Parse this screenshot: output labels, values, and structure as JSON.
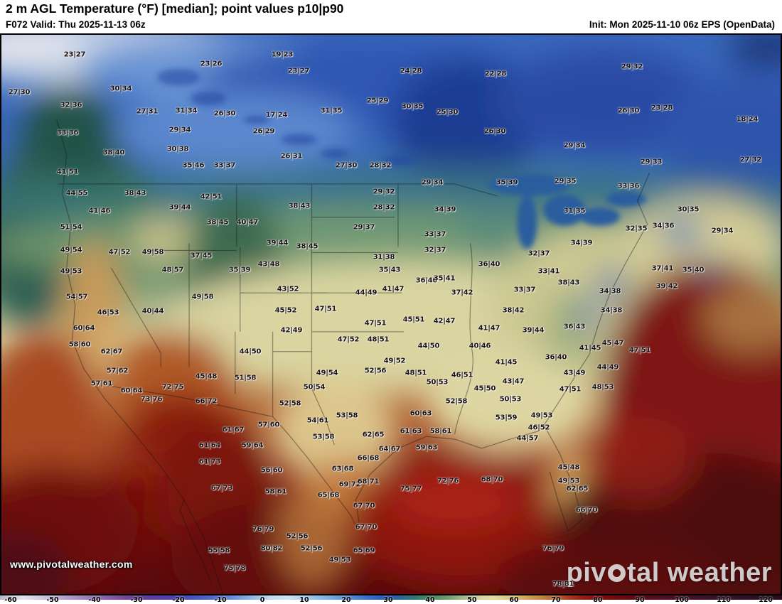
{
  "header": {
    "title": "2 m AGL Temperature (°F) [median]; point values p10|p90",
    "valid": "F072 Valid: Thu 2025-11-13 06z",
    "init": "Init: Mon 2025-11-10 06z EPS (OpenData)"
  },
  "map": {
    "watermark": "www.pivotalweather.com",
    "logo_left": "piv",
    "logo_right": "tal weather"
  },
  "colorbar": {
    "ticks": [
      -60,
      -50,
      -40,
      -30,
      -20,
      -10,
      0,
      10,
      20,
      30,
      40,
      50,
      60,
      70,
      80,
      90,
      100,
      110,
      120
    ],
    "stops": [
      {
        "v": -62.5,
        "c": "#b4b8c6"
      },
      {
        "v": -57,
        "c": "#e2e4ec"
      },
      {
        "v": -50,
        "c": "#c4b4d6"
      },
      {
        "v": -44,
        "c": "#a68cc2"
      },
      {
        "v": -38,
        "c": "#8c64ae"
      },
      {
        "v": -32,
        "c": "#744496"
      },
      {
        "v": -27,
        "c": "#603a9c"
      },
      {
        "v": -22,
        "c": "#5040aa"
      },
      {
        "v": -17,
        "c": "#4a52b6"
      },
      {
        "v": -12,
        "c": "#4f6ac4"
      },
      {
        "v": -7,
        "c": "#6c90d4"
      },
      {
        "v": -2,
        "c": "#96bae4"
      },
      {
        "v": 2,
        "c": "#c2dcf0"
      },
      {
        "v": 6,
        "c": "#cfe3f2"
      },
      {
        "v": 10,
        "c": "#a8cdec"
      },
      {
        "v": 15,
        "c": "#80b2e2"
      },
      {
        "v": 20,
        "c": "#588fd3"
      },
      {
        "v": 25,
        "c": "#3a70c3"
      },
      {
        "v": 29,
        "c": "#2b5cb2"
      },
      {
        "v": 33,
        "c": "#2c6796"
      },
      {
        "v": 36,
        "c": "#2f7872"
      },
      {
        "v": 40,
        "c": "#478860"
      },
      {
        "v": 44,
        "c": "#6f9c6e"
      },
      {
        "v": 48,
        "c": "#a6b88c"
      },
      {
        "v": 52,
        "c": "#d7d3a0"
      },
      {
        "v": 55,
        "c": "#e3d9a3"
      },
      {
        "v": 58,
        "c": "#decb85"
      },
      {
        "v": 62,
        "c": "#d4aa66"
      },
      {
        "v": 66,
        "c": "#c58949"
      },
      {
        "v": 70,
        "c": "#b66130"
      },
      {
        "v": 73,
        "c": "#a73d20"
      },
      {
        "v": 76,
        "c": "#962013"
      },
      {
        "v": 80,
        "c": "#800f0e"
      },
      {
        "v": 85,
        "c": "#6b0a0c"
      },
      {
        "v": 90,
        "c": "#5b0c17"
      },
      {
        "v": 96,
        "c": "#4d1021"
      },
      {
        "v": 104,
        "c": "#3f1227"
      },
      {
        "v": 112,
        "c": "#341127"
      },
      {
        "v": 120,
        "c": "#2b0e21"
      },
      {
        "v": 124,
        "c": "#270c1d"
      }
    ]
  },
  "stations": [
    [
      "23|27",
      105,
      77
    ],
    [
      "19|23",
      397,
      77
    ],
    [
      "23|26",
      297,
      90
    ],
    [
      "23|27",
      420,
      100
    ],
    [
      "24|28",
      578,
      100
    ],
    [
      "22|28",
      697,
      104
    ],
    [
      "29|32",
      889,
      94
    ],
    [
      "27|30",
      27,
      130
    ],
    [
      "30|34",
      170,
      125
    ],
    [
      "32|36",
      100,
      148
    ],
    [
      "27|31",
      207,
      157
    ],
    [
      "31|34",
      262,
      156
    ],
    [
      "26|30",
      316,
      160
    ],
    [
      "17|24",
      389,
      162
    ],
    [
      "31|35",
      466,
      156
    ],
    [
      "25|29",
      531,
      142
    ],
    [
      "30|35",
      580,
      150
    ],
    [
      "25|30",
      629,
      158
    ],
    [
      "26|30",
      884,
      156
    ],
    [
      "23|28",
      931,
      152
    ],
    [
      "18|24",
      1051,
      168
    ],
    [
      "33|36",
      95,
      187
    ],
    [
      "29|34",
      253,
      183
    ],
    [
      "26|29",
      371,
      185
    ],
    [
      "26|30",
      696,
      185
    ],
    [
      "38|40",
      160,
      215
    ],
    [
      "30|38",
      250,
      210
    ],
    [
      "26|31",
      410,
      220
    ],
    [
      "29|34",
      808,
      205
    ],
    [
      "27|32",
      1056,
      225
    ],
    [
      "41|51",
      95,
      242
    ],
    [
      "35|46",
      272,
      233
    ],
    [
      "33|37",
      316,
      233
    ],
    [
      "27|30",
      487,
      233
    ],
    [
      "28|32",
      535,
      233
    ],
    [
      "29|34",
      608,
      257
    ],
    [
      "29|33",
      916,
      228
    ],
    [
      "44|55",
      108,
      272
    ],
    [
      "38|43",
      190,
      272
    ],
    [
      "42|51",
      297,
      277
    ],
    [
      "38|43",
      421,
      290
    ],
    [
      "29|32",
      540,
      270
    ],
    [
      "28|32",
      540,
      292
    ],
    [
      "34|39",
      626,
      295
    ],
    [
      "35|39",
      713,
      257
    ],
    [
      "29|35",
      795,
      255
    ],
    [
      "33|36",
      884,
      262
    ],
    [
      "31|35",
      808,
      297
    ],
    [
      "30|35",
      968,
      295
    ],
    [
      "39|44",
      253,
      292
    ],
    [
      "41|46",
      140,
      297
    ],
    [
      "32|35",
      895,
      322
    ],
    [
      "34|36",
      933,
      318
    ],
    [
      "29|34",
      1016,
      325
    ],
    [
      "51|54",
      100,
      320
    ],
    [
      "38|45",
      306,
      313
    ],
    [
      "40|47",
      348,
      313
    ],
    [
      "29|37",
      512,
      320
    ],
    [
      "33|37",
      612,
      330
    ],
    [
      "49|54",
      100,
      352
    ],
    [
      "47|52",
      168,
      355
    ],
    [
      "49|58",
      215,
      355
    ],
    [
      "37|45",
      283,
      360
    ],
    [
      "39|44",
      390,
      342
    ],
    [
      "38|45",
      432,
      347
    ],
    [
      "31|38",
      540,
      362
    ],
    [
      "32|37",
      612,
      352
    ],
    [
      "32|37",
      758,
      357
    ],
    [
      "34|39",
      818,
      342
    ],
    [
      "36|40",
      688,
      372
    ],
    [
      "35|40",
      975,
      380
    ],
    [
      "37|41",
      932,
      378
    ],
    [
      "48|57",
      243,
      380
    ],
    [
      "35|39",
      337,
      380
    ],
    [
      "43|48",
      378,
      372
    ],
    [
      "35|43",
      548,
      380
    ],
    [
      "36|40",
      600,
      395
    ],
    [
      "35|41",
      625,
      392
    ],
    [
      "33|41",
      772,
      382
    ],
    [
      "38|43",
      800,
      398
    ],
    [
      "39|42",
      938,
      403
    ],
    [
      "34|38",
      858,
      410
    ],
    [
      "49|53",
      100,
      382
    ],
    [
      "54|57",
      108,
      418
    ],
    [
      "49|58",
      285,
      418
    ],
    [
      "43|52",
      405,
      407
    ],
    [
      "41|47",
      553,
      407
    ],
    [
      "44|49",
      515,
      412
    ],
    [
      "37|42",
      650,
      412
    ],
    [
      "33|37",
      738,
      408
    ],
    [
      "46|53",
      152,
      440
    ],
    [
      "40|44",
      215,
      438
    ],
    [
      "45|52",
      402,
      437
    ],
    [
      "47|51",
      458,
      435
    ],
    [
      "45|51",
      582,
      450
    ],
    [
      "42|47",
      625,
      452
    ],
    [
      "47|51",
      528,
      455
    ],
    [
      "38|42",
      722,
      437
    ],
    [
      "34|38",
      860,
      437
    ],
    [
      "36|43",
      808,
      460
    ],
    [
      "41|47",
      688,
      462
    ],
    [
      "42|49",
      410,
      465
    ],
    [
      "39|44",
      750,
      465
    ],
    [
      "60|64",
      118,
      462
    ],
    [
      "58|60",
      112,
      485
    ],
    [
      "62|67",
      157,
      495
    ],
    [
      "47|52",
      490,
      478
    ],
    [
      "48|51",
      532,
      478
    ],
    [
      "44|50",
      603,
      487
    ],
    [
      "40|46",
      675,
      487
    ],
    [
      "44|50",
      352,
      495
    ],
    [
      "47|51",
      900,
      493
    ],
    [
      "45|47",
      862,
      483
    ],
    [
      "41|45",
      830,
      490
    ],
    [
      "57|62",
      165,
      522
    ],
    [
      "45|48",
      290,
      530
    ],
    [
      "51|58",
      345,
      532
    ],
    [
      "49|52",
      555,
      508
    ],
    [
      "41|45",
      712,
      510
    ],
    [
      "36|40",
      782,
      503
    ],
    [
      "49|54",
      460,
      525
    ],
    [
      "52|56",
      528,
      522
    ],
    [
      "48|51",
      585,
      525
    ],
    [
      "46|51",
      650,
      528
    ],
    [
      "43|49",
      808,
      525
    ],
    [
      "44|49",
      855,
      517
    ],
    [
      "43|47",
      722,
      537
    ],
    [
      "50|53",
      615,
      538
    ],
    [
      "45|50",
      682,
      547
    ],
    [
      "57|61",
      143,
      540
    ],
    [
      "60|64",
      185,
      550
    ],
    [
      "72|75",
      243,
      545
    ],
    [
      "73|76",
      213,
      562
    ],
    [
      "50|54",
      442,
      545
    ],
    [
      "52|58",
      408,
      568
    ],
    [
      "66|72",
      290,
      565
    ],
    [
      "52|58",
      642,
      565
    ],
    [
      "50|53",
      718,
      562
    ],
    [
      "47|51",
      802,
      548
    ],
    [
      "48|53",
      848,
      545
    ],
    [
      "57|60",
      378,
      598
    ],
    [
      "61|67",
      328,
      605
    ],
    [
      "53|58",
      488,
      585
    ],
    [
      "54|61",
      447,
      592
    ],
    [
      "49|53",
      762,
      585
    ],
    [
      "53|59",
      712,
      588
    ],
    [
      "60|63",
      592,
      582
    ],
    [
      "46|52",
      758,
      602
    ],
    [
      "61|63",
      578,
      607
    ],
    [
      "58|61",
      620,
      607
    ],
    [
      "53|58",
      455,
      615
    ],
    [
      "62|65",
      525,
      612
    ],
    [
      "59|63",
      600,
      630
    ],
    [
      "64|67",
      548,
      632
    ],
    [
      "61|64",
      295,
      627
    ],
    [
      "59|64",
      355,
      627
    ],
    [
      "44|57",
      742,
      617
    ],
    [
      "61|73",
      295,
      650
    ],
    [
      "56|60",
      382,
      662
    ],
    [
      "63|68",
      482,
      660
    ],
    [
      "66|68",
      518,
      645
    ],
    [
      "45|48",
      800,
      658
    ],
    [
      "68|70",
      692,
      675
    ],
    [
      "72|76",
      630,
      677
    ],
    [
      "67|73",
      312,
      687
    ],
    [
      "58|61",
      388,
      692
    ],
    [
      "65|68",
      462,
      697
    ],
    [
      "69|72",
      492,
      682
    ],
    [
      "68|71",
      518,
      678
    ],
    [
      "75|77",
      578,
      688
    ],
    [
      "49|53",
      800,
      677
    ],
    [
      "62|65",
      812,
      688
    ],
    [
      "67|70",
      512,
      712
    ],
    [
      "66|70",
      825,
      718
    ],
    [
      "67|70",
      515,
      742
    ],
    [
      "76|79",
      370,
      745
    ],
    [
      "52|56",
      418,
      755
    ],
    [
      "55|58",
      308,
      775
    ],
    [
      "52|56",
      438,
      772
    ],
    [
      "80|82",
      382,
      772
    ],
    [
      "49|53",
      478,
      788
    ],
    [
      "65|69",
      512,
      775
    ],
    [
      "75|78",
      330,
      800
    ],
    [
      "76|79",
      778,
      772
    ],
    [
      "78|81",
      792,
      822
    ]
  ]
}
